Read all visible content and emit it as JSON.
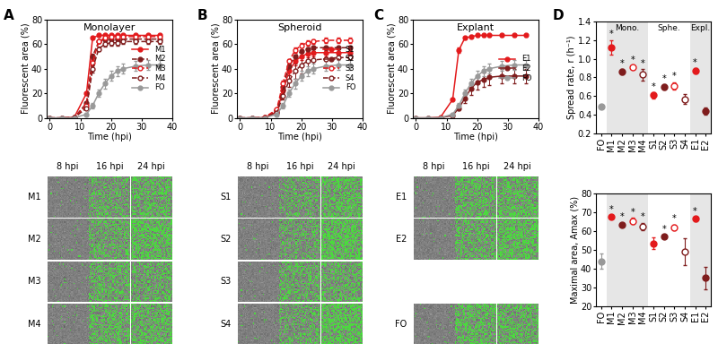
{
  "panel_labels": [
    "A",
    "B",
    "C",
    "D"
  ],
  "chart_data": [
    {
      "type": "line",
      "title": "Monolayer",
      "x_label": "Time (hpi)",
      "y_label": "Fluorescent area (%)",
      "xlim": [
        -1,
        40
      ],
      "xticks": [
        0,
        10,
        20,
        30,
        40
      ],
      "ylim": [
        0,
        80
      ],
      "yticks": [
        0,
        20,
        40,
        60,
        80
      ],
      "legend": "center right",
      "x": [
        0,
        4,
        8,
        12,
        14,
        16,
        18,
        20,
        22,
        24,
        28,
        32,
        36
      ],
      "series": [
        {
          "name": "M1",
          "color": "#e31a1c",
          "marker": "circle",
          "line_style": "solid",
          "values": [
            0,
            0,
            0.5,
            20,
            65,
            67,
            67,
            67,
            67,
            67,
            67,
            67,
            67
          ],
          "errors": [
            0,
            0,
            0,
            1,
            1,
            1,
            1,
            1,
            1,
            1,
            1,
            1,
            1
          ]
        },
        {
          "name": "M2",
          "color": "#7f1d1d",
          "marker": "circle",
          "line_style": "dashed",
          "values": [
            0,
            0,
            0.3,
            12,
            50,
            62,
            64,
            64,
            64,
            64,
            64,
            64,
            64
          ],
          "errors": [
            0,
            0,
            0,
            1,
            2,
            1,
            1,
            1,
            1,
            1,
            1,
            1,
            1
          ]
        },
        {
          "name": "M3",
          "color": "#e31a1c",
          "marker": "open circle",
          "line_style": "dashed",
          "values": [
            0,
            0,
            0.3,
            10,
            45,
            62,
            65,
            66,
            66,
            66,
            66,
            66,
            66
          ],
          "errors": [
            0,
            0,
            0,
            1,
            2,
            1,
            1,
            1,
            1,
            1,
            1,
            1,
            1
          ]
        },
        {
          "name": "M4",
          "color": "#7f1d1d",
          "marker": "open circle",
          "line_style": "dashed",
          "values": [
            0,
            0,
            0.2,
            8,
            40,
            56,
            60,
            61,
            61,
            62,
            62,
            62,
            62
          ],
          "errors": [
            0,
            0,
            0,
            1,
            3,
            2,
            2,
            2,
            2,
            2,
            2,
            2,
            2
          ]
        },
        {
          "name": "FO",
          "color": "#999999",
          "marker": "circle",
          "line_style": "solid",
          "values": [
            0,
            0,
            0.1,
            3,
            10,
            20,
            28,
            34,
            38,
            40,
            42,
            43,
            43
          ],
          "errors": [
            0,
            0,
            0,
            0.5,
            2,
            3,
            4,
            4,
            4,
            4,
            4,
            4,
            4
          ]
        }
      ]
    },
    {
      "type": "line",
      "title": "Spheroid",
      "x_label": "Time (hpi)",
      "y_label": "Fluorescent area (%)",
      "xlim": [
        -1,
        40
      ],
      "xticks": [
        0,
        10,
        20,
        30,
        40
      ],
      "ylim": [
        0,
        80
      ],
      "yticks": [
        0,
        20,
        40,
        60,
        80
      ],
      "legend": "center right",
      "x": [
        0,
        4,
        8,
        12,
        14,
        16,
        18,
        20,
        22,
        24,
        28,
        32,
        36
      ],
      "series": [
        {
          "name": "S1",
          "color": "#e31a1c",
          "marker": "circle",
          "line_style": "solid",
          "values": [
            0,
            0,
            0.2,
            5,
            22,
            38,
            46,
            50,
            52,
            53,
            53,
            53,
            53
          ],
          "errors": [
            0,
            0,
            0,
            1,
            2,
            3,
            3,
            3,
            3,
            3,
            3,
            3,
            3
          ]
        },
        {
          "name": "S2",
          "color": "#7f1d1d",
          "marker": "circle",
          "line_style": "dashed",
          "values": [
            0,
            0,
            0.2,
            6,
            25,
            42,
            50,
            54,
            56,
            57,
            57,
            57,
            57
          ],
          "errors": [
            0,
            0,
            0,
            1,
            2,
            2,
            1,
            1,
            1,
            1,
            1,
            1,
            1
          ]
        },
        {
          "name": "S3",
          "color": "#e31a1c",
          "marker": "open circle",
          "line_style": "dashed",
          "values": [
            0,
            0,
            0.3,
            7,
            28,
            46,
            55,
            59,
            61,
            62,
            63,
            63,
            63
          ],
          "errors": [
            0,
            0,
            0,
            1,
            2,
            2,
            2,
            2,
            2,
            2,
            2,
            2,
            2
          ]
        },
        {
          "name": "S4",
          "color": "#7f1d1d",
          "marker": "open circle",
          "line_style": "dashed",
          "values": [
            0,
            0,
            0.1,
            4,
            18,
            30,
            38,
            43,
            46,
            47,
            48,
            49,
            49
          ],
          "errors": [
            0,
            0,
            0,
            1,
            3,
            5,
            6,
            7,
            7,
            7,
            7,
            7,
            7
          ]
        },
        {
          "name": "FO",
          "color": "#999999",
          "marker": "circle",
          "line_style": "solid",
          "values": [
            0,
            0,
            0.1,
            3,
            10,
            20,
            28,
            34,
            38,
            40,
            42,
            43,
            43
          ],
          "errors": [
            0,
            0,
            0,
            0.5,
            2,
            3,
            4,
            4,
            4,
            4,
            4,
            4,
            4
          ]
        }
      ]
    },
    {
      "type": "line",
      "title": "Explant",
      "x_label": "Time (hpi)",
      "y_label": "Fluorescent area (%)",
      "xlim": [
        -1,
        40
      ],
      "xticks": [
        0,
        10,
        20,
        30,
        40
      ],
      "ylim": [
        0,
        80
      ],
      "yticks": [
        0,
        20,
        40,
        60,
        80
      ],
      "legend": "center right",
      "x": [
        0,
        4,
        8,
        12,
        14,
        16,
        18,
        20,
        22,
        24,
        28,
        32,
        36
      ],
      "series": [
        {
          "name": "E1",
          "color": "#e31a1c",
          "marker": "circle",
          "line_style": "solid",
          "values": [
            0,
            0,
            0.5,
            15,
            55,
            65,
            66,
            67,
            67,
            67,
            67,
            67,
            67
          ],
          "errors": [
            0,
            0,
            0,
            1,
            2,
            1,
            1,
            1,
            1,
            1,
            1,
            1,
            1
          ]
        },
        {
          "name": "E2",
          "color": "#7f1d1d",
          "marker": "circle",
          "line_style": "solid",
          "values": [
            0,
            0,
            0.1,
            2,
            8,
            16,
            24,
            29,
            31,
            33,
            34,
            34,
            34
          ],
          "errors": [
            0,
            0,
            0,
            0.5,
            2,
            4,
            5,
            6,
            6,
            6,
            6,
            6,
            6
          ]
        },
        {
          "name": "FO",
          "color": "#999999",
          "marker": "circle",
          "line_style": "solid",
          "values": [
            0,
            0,
            0.1,
            3,
            10,
            20,
            28,
            34,
            38,
            40,
            42,
            43,
            43
          ],
          "errors": [
            0,
            0,
            0,
            0.5,
            2,
            3,
            4,
            4,
            4,
            4,
            4,
            4,
            4
          ]
        }
      ]
    },
    {
      "type": "scatter",
      "y_label": "Spread rate, r (h⁻¹)",
      "categories": [
        "FO",
        "M1",
        "M2",
        "M3",
        "M4",
        "S1",
        "S2",
        "S3",
        "S4",
        "E1",
        "E2"
      ],
      "ylim": [
        0.2,
        1.4
      ],
      "yticks": [
        0.2,
        0.4,
        0.6,
        0.8,
        1.0,
        1.2,
        1.4
      ],
      "groups": [
        {
          "label": "Mono.",
          "categories": [
            "M1",
            "M2",
            "M3",
            "M4"
          ]
        },
        {
          "label": "Sphe.",
          "categories": [
            "S1",
            "S2",
            "S3",
            "S4"
          ]
        },
        {
          "label": "Expl.",
          "categories": [
            "E1",
            "E2"
          ]
        }
      ],
      "series": [
        {
          "color": "#999999",
          "marker": "circle",
          "values": [
            0.49,
            null,
            null,
            null,
            null,
            null,
            null,
            null,
            null,
            null,
            null
          ],
          "errors": [
            0.01,
            null,
            null,
            null,
            null,
            null,
            null,
            null,
            null,
            null,
            null
          ]
        },
        {
          "color": "#e31a1c",
          "marker": "circle",
          "values": [
            null,
            1.12,
            null,
            null,
            null,
            0.61,
            null,
            null,
            null,
            0.87,
            null
          ],
          "errors": [
            null,
            0.08,
            null,
            null,
            null,
            0.03,
            null,
            null,
            null,
            0.03,
            null
          ]
        },
        {
          "color": "#7f1d1d",
          "marker": "circle",
          "values": [
            null,
            null,
            0.86,
            null,
            null,
            null,
            0.7,
            null,
            null,
            null,
            0.44
          ],
          "errors": [
            null,
            null,
            0.03,
            null,
            null,
            null,
            0.03,
            null,
            null,
            null,
            0.04
          ]
        },
        {
          "color": "#e31a1c",
          "marker": "open circle",
          "values": [
            null,
            null,
            null,
            0.91,
            null,
            null,
            null,
            0.71,
            null,
            null,
            null
          ],
          "errors": [
            null,
            null,
            null,
            0.02,
            null,
            null,
            null,
            0.04,
            null,
            null,
            null
          ]
        },
        {
          "color": "#7f1d1d",
          "marker": "open circle",
          "values": [
            null,
            null,
            null,
            null,
            0.83,
            null,
            null,
            null,
            0.57,
            null,
            null
          ],
          "errors": [
            null,
            null,
            null,
            null,
            0.06,
            null,
            null,
            null,
            0.05,
            null,
            null
          ]
        }
      ],
      "annotations": [
        {
          "text": "*",
          "category": "M1"
        },
        {
          "text": "*",
          "category": "M2"
        },
        {
          "text": "*",
          "category": "M3"
        },
        {
          "text": "*",
          "category": "M4"
        },
        {
          "text": "*",
          "category": "S1"
        },
        {
          "text": "*",
          "category": "S2"
        },
        {
          "text": "*",
          "category": "S3"
        },
        {
          "text": "*",
          "category": "E1"
        }
      ]
    },
    {
      "type": "scatter",
      "y_label": "Maximal area, Amax (%)",
      "categories": [
        "FO",
        "M1",
        "M2",
        "M3",
        "M4",
        "S1",
        "S2",
        "S3",
        "S4",
        "E1",
        "E2"
      ],
      "ylim": [
        20,
        80
      ],
      "yticks": [
        20,
        30,
        40,
        50,
        60,
        70,
        80
      ],
      "series": [
        {
          "color": "#999999",
          "marker": "circle",
          "values": [
            44,
            null,
            null,
            null,
            null,
            null,
            null,
            null,
            null,
            null,
            null
          ],
          "errors": [
            4,
            null,
            null,
            null,
            null,
            null,
            null,
            null,
            null,
            null,
            null
          ]
        },
        {
          "color": "#e31a1c",
          "marker": "circle",
          "values": [
            null,
            67.5,
            null,
            null,
            null,
            53.5,
            null,
            null,
            null,
            66.5,
            null
          ],
          "errors": [
            null,
            1,
            null,
            null,
            null,
            3,
            null,
            null,
            null,
            1,
            null
          ]
        },
        {
          "color": "#7f1d1d",
          "marker": "circle",
          "values": [
            null,
            null,
            63.5,
            null,
            null,
            null,
            57,
            null,
            null,
            null,
            35
          ],
          "errors": [
            null,
            null,
            1,
            null,
            null,
            null,
            1,
            null,
            null,
            null,
            6
          ]
        },
        {
          "color": "#e31a1c",
          "marker": "open circle",
          "values": [
            null,
            null,
            null,
            65.5,
            null,
            null,
            null,
            62,
            null,
            null,
            null
          ],
          "errors": [
            null,
            null,
            null,
            1.5,
            null,
            null,
            null,
            1.5,
            null,
            null,
            null
          ]
        },
        {
          "color": "#7f1d1d",
          "marker": "open circle",
          "values": [
            null,
            null,
            null,
            null,
            62.5,
            null,
            null,
            null,
            49,
            null,
            null
          ],
          "errors": [
            null,
            null,
            null,
            null,
            2,
            null,
            null,
            null,
            7,
            null,
            null
          ]
        }
      ],
      "annotations": [
        {
          "text": "*",
          "category": "M1"
        },
        {
          "text": "*",
          "category": "M2"
        },
        {
          "text": "*",
          "category": "M3"
        },
        {
          "text": "*",
          "category": "M4"
        },
        {
          "text": "*",
          "category": "S2"
        },
        {
          "text": "*",
          "category": "S3"
        },
        {
          "text": "*",
          "category": "E1"
        }
      ]
    }
  ],
  "micrographs": [
    {
      "columns": [
        "8 hpi",
        "16 hpi",
        "24 hpi"
      ],
      "rows": [
        "M1",
        "M2",
        "M3",
        "M4"
      ]
    },
    {
      "columns": [
        "8 hpi",
        "16 hpi",
        "24 hpi"
      ],
      "rows": [
        "S1",
        "S2",
        "S3",
        "S4"
      ]
    },
    {
      "columns": [
        "8 hpi",
        "16 hpi",
        "24 hpi"
      ],
      "rows": [
        "E1",
        "E2",
        null,
        "FO"
      ]
    }
  ]
}
